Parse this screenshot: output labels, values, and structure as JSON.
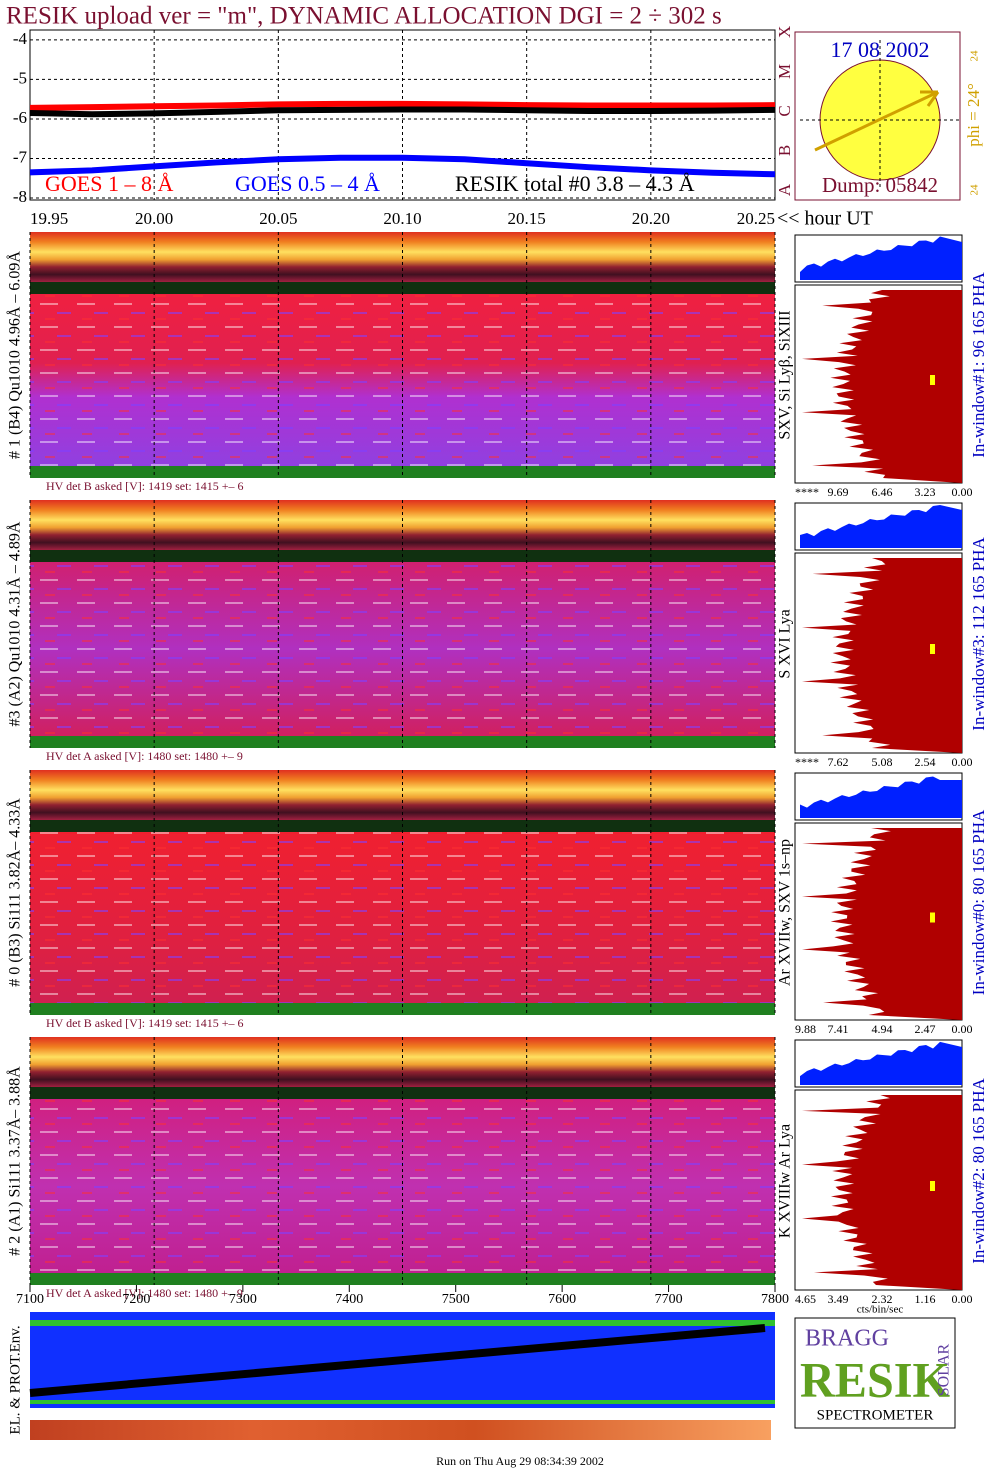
{
  "title": "RESIK upload ver = \"m\", DYNAMIC ALLOCATION  DGI =   2 ÷ 302 s",
  "chart_data": {
    "type": "line",
    "x": [
      19.95,
      19.975,
      20.0,
      20.025,
      20.05,
      20.075,
      20.1,
      20.125,
      20.15,
      20.175,
      20.2,
      20.225,
      20.25
    ],
    "xlim": [
      19.95,
      20.25
    ],
    "xticks": [
      19.95,
      {
        "value": 20.0,
        "label": "20.00"
      },
      20.05,
      {
        "value": 20.1,
        "label": "20.10"
      },
      20.15,
      {
        "value": 20.2,
        "label": "20.20"
      },
      20.25
    ],
    "x_label": "<< hour UT",
    "ylim": [
      -8.05,
      -3.75
    ],
    "yticks": [
      -4,
      -5,
      -6,
      -7,
      -8
    ],
    "y2lim": [
      -8.05,
      -3.75
    ],
    "y2ticks": [
      {
        "value": -8,
        "label": "A"
      },
      {
        "value": -7,
        "label": "B"
      },
      {
        "value": -6,
        "label": "C"
      },
      {
        "value": -5,
        "label": "M"
      },
      {
        "value": -4,
        "label": "X"
      }
    ],
    "grid": true,
    "series": [
      {
        "name": "GOES 1 – 8 Å",
        "color": "#ff0000",
        "values": [
          -5.72,
          -5.7,
          -5.68,
          -5.66,
          -5.63,
          -5.62,
          -5.62,
          -5.63,
          -5.65,
          -5.66,
          -5.66,
          -5.66,
          -5.65
        ]
      },
      {
        "name": "GOES 0.5 – 4 Å",
        "color": "#0000ff",
        "values": [
          -7.35,
          -7.3,
          -7.2,
          -7.1,
          -7.02,
          -6.98,
          -6.98,
          -7.02,
          -7.12,
          -7.22,
          -7.3,
          -7.36,
          -7.4
        ]
      },
      {
        "name": "RESIK total #0  3.8 – 4.3 Å",
        "color": "#000000",
        "values": [
          -5.85,
          -5.88,
          -5.86,
          -5.82,
          -5.78,
          -5.77,
          -5.76,
          -5.76,
          -5.78,
          -5.8,
          -5.8,
          -5.79,
          -5.77
        ]
      }
    ]
  },
  "sun": {
    "date": "17 08 2002",
    "phi_label": "phi = 24°",
    "phi_top": "24",
    "phi_bottom": "24",
    "dump": "Dump: 05842"
  },
  "panels": [
    {
      "detector": "# 1 (B4) Qu1010 4.96Å – 6.09Å",
      "lines": "SXV, Si Lyβ, SiXIII",
      "window": "In-window#1:   96 165  PHA",
      "hv": "HV det B asked [V]:  1419 set:  1415  +–    6",
      "pha_ticks": [
        "****",
        "9.69",
        "6.46",
        "3.23",
        "0.00"
      ]
    },
    {
      "detector": "#3 (A2) Qu1010  4.31Å – 4.89Å",
      "lines": "S XVI Lya",
      "window": "In-window#3:  112 165  PHA",
      "hv": "HV det A asked [V]:  1480 set:  1480  +–    9",
      "pha_ticks": [
        "****",
        "7.62",
        "5.08",
        "2.54",
        "0.00"
      ]
    },
    {
      "detector": "# 0 (B3) Si111  3.82Å– 4.33Å",
      "lines": "Ar XVIIw,  SXV 1s–np",
      "window": "In-window#0:   80 165  PHA",
      "hv": "HV det B asked [V]:  1419 set:  1415  +–    6",
      "pha_ticks": [
        "9.88",
        "7.41",
        "4.94",
        "2.47",
        "0.00"
      ]
    },
    {
      "detector": "# 2 (A1) Si111  3.37Å– 3.88Å",
      "lines": "K XVIIIw  Ar Lya",
      "window": "In-window#2:   80 165  PHA",
      "hv": "HV det A asked [V]:  1480 set:  1480  +–    9",
      "pha_ticks": [
        "4.65",
        "3.49",
        "2.32",
        "1.16",
        "0.00"
      ]
    }
  ],
  "pha_unit": "cts/bin/sec",
  "env": {
    "label": "EL. & PROT.Env.",
    "xlim": [
      7100,
      7800
    ],
    "xticks": [
      7100,
      7200,
      7300,
      7400,
      7500,
      7600,
      7700,
      7800
    ]
  },
  "logo": {
    "top": "BRAGG",
    "main": "RESIK",
    "side": "SOLAR",
    "bottom": "SPECTROMETER"
  },
  "footer": "Run on Thu Aug 29 08:34:39 2002"
}
